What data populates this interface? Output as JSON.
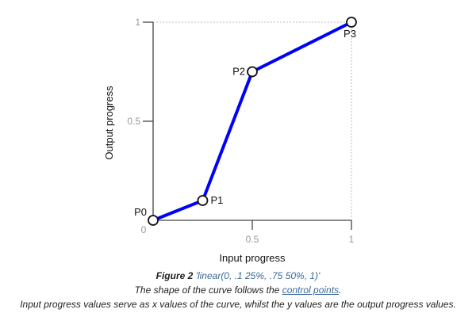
{
  "chart_data": {
    "type": "line",
    "title": "",
    "xlabel": "Input progress",
    "ylabel": "Output progress",
    "xlim": [
      0,
      1
    ],
    "ylim": [
      0,
      1
    ],
    "x_ticks": [
      {
        "value": 0,
        "label": "0"
      },
      {
        "value": 0.5,
        "label": "0.5"
      },
      {
        "value": 1,
        "label": "1"
      }
    ],
    "y_ticks": [
      {
        "value": 0.5,
        "label": "0.5"
      },
      {
        "value": 1,
        "label": "1"
      }
    ],
    "series": [
      {
        "name": "linear(0, .1 25%, .75 50%, 1)",
        "color": "#0000ff",
        "points": [
          {
            "label": "P0",
            "x": 0,
            "y": 0
          },
          {
            "label": "P1",
            "x": 0.25,
            "y": 0.1
          },
          {
            "label": "P2",
            "x": 0.5,
            "y": 0.75
          },
          {
            "label": "P3",
            "x": 1,
            "y": 1
          }
        ]
      }
    ]
  },
  "caption": {
    "figure_label": "Figure 2",
    "figure_code": "'linear(0, .1 25%, .75 50%, 1)'",
    "line2_prefix": "The shape of the curve follows the ",
    "line2_link": "control points",
    "line2_suffix": ".",
    "line3": "Input progress values serve as x values of the curve, whilst the y values are the output progress values."
  }
}
